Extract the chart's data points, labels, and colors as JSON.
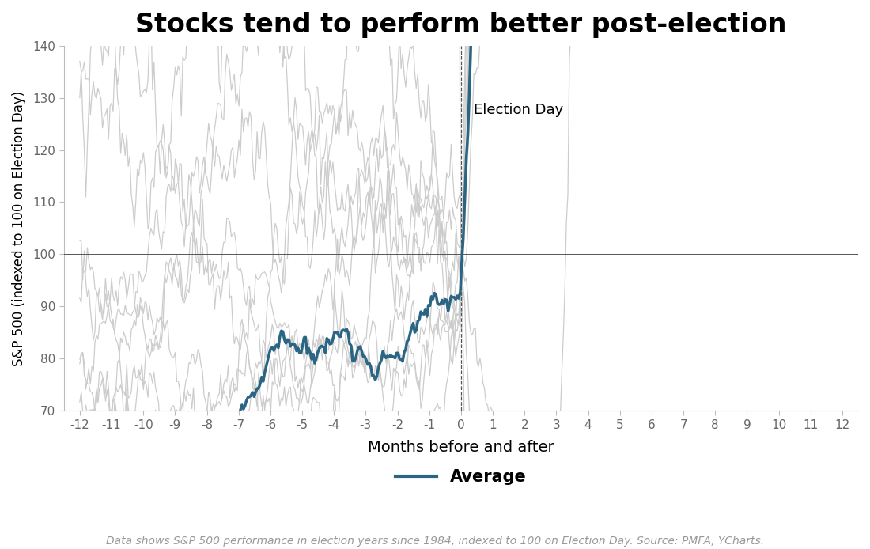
{
  "title": "Stocks tend to perform better post-election",
  "xlabel": "Months before and after",
  "ylabel": "S&P 500 (indexed to 100 on Election Day)",
  "election_day_label": "Election Day",
  "average_label": "Average",
  "footnote": "Data shows S&P 500 performance in election years since 1984, indexed to 100 on Election Day. Source: PMFA, YCharts.",
  "ylim": [
    70,
    140
  ],
  "yticks": [
    70,
    80,
    90,
    100,
    110,
    120,
    130,
    140
  ],
  "xticks": [
    -12,
    -11,
    -10,
    -9,
    -8,
    -7,
    -6,
    -5,
    -4,
    -3,
    -2,
    -1,
    0,
    1,
    2,
    3,
    4,
    5,
    6,
    7,
    8,
    9,
    10,
    11,
    12
  ],
  "line_color": "#2b6584",
  "individual_color": "#cccccc",
  "background_color": "#ffffff",
  "title_fontsize": 24,
  "label_fontsize": 13,
  "tick_fontsize": 11,
  "footnote_fontsize": 10
}
